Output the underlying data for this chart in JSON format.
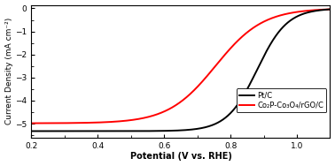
{
  "title": "",
  "xlabel": "Potential (V vs. RHE)",
  "ylabel": "Current Density (mA cm⁻²)",
  "xlim": [
    0.2,
    1.1
  ],
  "ylim": [
    -5.6,
    0.15
  ],
  "yticks": [
    0,
    -1,
    -2,
    -3,
    -4,
    -5
  ],
  "xticks": [
    0.2,
    0.4,
    0.6,
    0.8,
    1.0
  ],
  "legend_labels": [
    "Pt/C",
    "Co₂P-Co₃O₄/rGO/C"
  ],
  "line_colors": [
    "black",
    "red"
  ],
  "background_color": "#ffffff",
  "ptc_params": {
    "half_wave": 0.88,
    "diffusion_limit": -5.32,
    "slope_factor": 22.0
  },
  "co2p_params": {
    "half_wave": 0.755,
    "diffusion_limit": -4.98,
    "slope_factor": 14.0
  }
}
